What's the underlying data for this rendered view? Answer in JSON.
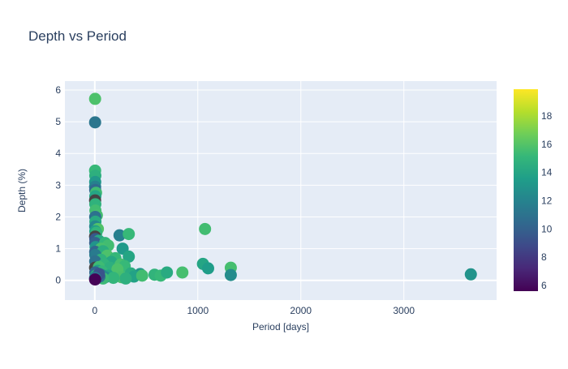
{
  "chart_data": {
    "type": "scatter",
    "title": "Depth vs Period",
    "xlabel": "Period [days]",
    "ylabel": "Depth (%)",
    "xlim": [
      -290,
      3900
    ],
    "ylim": [
      -0.62,
      6.28
    ],
    "xticks": [
      0,
      1000,
      2000,
      3000
    ],
    "yticks": [
      0,
      1,
      2,
      3,
      4,
      5,
      6
    ],
    "grid": true,
    "legend": "none",
    "colorbar": {
      "colorscale": "Viridis",
      "range": [
        5.6,
        19.9
      ],
      "ticks": [
        6,
        8,
        10,
        12,
        14,
        16,
        18
      ]
    },
    "null_color": "#444444",
    "points": [
      {
        "x": 3,
        "y": 5.72,
        "c": 15.8
      },
      {
        "x": 3,
        "y": 4.98,
        "c": 11.2
      },
      {
        "x": 3,
        "y": 3.46,
        "c": 15.2
      },
      {
        "x": 5,
        "y": 3.3,
        "c": 14.6
      },
      {
        "x": 4,
        "y": 3.1,
        "c": 13.2
      },
      {
        "x": 3,
        "y": 2.95,
        "c": 11.9
      },
      {
        "x": 4,
        "y": 2.85,
        "c": 10.5
      },
      {
        "x": 12,
        "y": 2.76,
        "c": 15.4
      },
      {
        "x": 5,
        "y": 2.65,
        "c": 14.0
      },
      {
        "x": 3,
        "y": 2.52,
        "c": null
      },
      {
        "x": 5,
        "y": 2.4,
        "c": 14.8
      },
      {
        "x": 6,
        "y": 2.2,
        "c": 15.5
      },
      {
        "x": 20,
        "y": 2.05,
        "c": 15.6
      },
      {
        "x": 4,
        "y": 2.0,
        "c": 11.0
      },
      {
        "x": 6,
        "y": 1.85,
        "c": 14.3
      },
      {
        "x": 4,
        "y": 1.7,
        "c": 12.3
      },
      {
        "x": 30,
        "y": 1.62,
        "c": 15.9
      },
      {
        "x": 5,
        "y": 1.55,
        "c": 13.6
      },
      {
        "x": 15,
        "y": 1.5,
        "c": 15.0
      },
      {
        "x": 3,
        "y": 1.38,
        "c": null
      },
      {
        "x": 5,
        "y": 1.3,
        "c": 9.6
      },
      {
        "x": 40,
        "y": 1.25,
        "c": 14.2
      },
      {
        "x": 4,
        "y": 1.18,
        "c": 10.0
      },
      {
        "x": 100,
        "y": 1.18,
        "c": 15.0
      },
      {
        "x": 130,
        "y": 1.1,
        "c": 15.5
      },
      {
        "x": 8,
        "y": 1.05,
        "c": 13.0
      },
      {
        "x": 60,
        "y": 1.0,
        "c": 15.7
      },
      {
        "x": 4,
        "y": 0.9,
        "c": 10.3
      },
      {
        "x": 270,
        "y": 1.0,
        "c": 13.3
      },
      {
        "x": 80,
        "y": 0.92,
        "c": 14.5
      },
      {
        "x": 5,
        "y": 0.8,
        "c": 11.5
      },
      {
        "x": 120,
        "y": 0.78,
        "c": 15.8
      },
      {
        "x": 330,
        "y": 0.75,
        "c": 14.0
      },
      {
        "x": 200,
        "y": 0.7,
        "c": 15.1
      },
      {
        "x": 60,
        "y": 0.65,
        "c": 14.8
      },
      {
        "x": 4,
        "y": 0.6,
        "c": 10.9
      },
      {
        "x": 160,
        "y": 0.58,
        "c": 14.1
      },
      {
        "x": 250,
        "y": 0.5,
        "c": 15.6
      },
      {
        "x": 90,
        "y": 0.5,
        "c": 14.9
      },
      {
        "x": 290,
        "y": 0.45,
        "c": 15.2
      },
      {
        "x": 3,
        "y": 0.4,
        "c": null
      },
      {
        "x": 40,
        "y": 0.42,
        "c": 15.4
      },
      {
        "x": 150,
        "y": 0.4,
        "c": 14.6
      },
      {
        "x": 220,
        "y": 0.35,
        "c": 15.8
      },
      {
        "x": 30,
        "y": 0.3,
        "c": 13.6
      },
      {
        "x": 70,
        "y": 0.28,
        "c": 15.1
      },
      {
        "x": 5,
        "y": 0.25,
        "c": 10.2
      },
      {
        "x": 350,
        "y": 0.22,
        "c": 14.4
      },
      {
        "x": 440,
        "y": 0.2,
        "c": 13.1
      },
      {
        "x": 580,
        "y": 0.18,
        "c": 14.9
      },
      {
        "x": 640,
        "y": 0.15,
        "c": 15.2
      },
      {
        "x": 700,
        "y": 0.25,
        "c": 14.3
      },
      {
        "x": 850,
        "y": 0.25,
        "c": 15.6
      },
      {
        "x": 380,
        "y": 0.12,
        "c": 13.8
      },
      {
        "x": 460,
        "y": 0.15,
        "c": 15.5
      },
      {
        "x": 260,
        "y": 0.1,
        "c": 15.7
      },
      {
        "x": 130,
        "y": 0.15,
        "c": 14.0
      },
      {
        "x": 60,
        "y": 0.18,
        "c": 11.7
      },
      {
        "x": 100,
        "y": 0.1,
        "c": 12.4
      },
      {
        "x": 180,
        "y": 0.08,
        "c": 15.0
      },
      {
        "x": 300,
        "y": 0.06,
        "c": 14.6
      },
      {
        "x": 80,
        "y": 0.06,
        "c": 15.3
      },
      {
        "x": 20,
        "y": 0.1,
        "c": 13.9
      },
      {
        "x": 45,
        "y": 0.12,
        "c": 10.6
      },
      {
        "x": 10,
        "y": 0.15,
        "c": 14.3
      },
      {
        "x": 40,
        "y": 0.2,
        "c": 9.3
      },
      {
        "x": 3,
        "y": 0.08,
        "c": 11.2
      },
      {
        "x": 3,
        "y": 0.03,
        "c": 5.7
      },
      {
        "x": 240,
        "y": 1.42,
        "c": 11.8
      },
      {
        "x": 330,
        "y": 1.46,
        "c": 15.2
      },
      {
        "x": 1070,
        "y": 1.62,
        "c": 15.5
      },
      {
        "x": 1050,
        "y": 0.52,
        "c": 14.0
      },
      {
        "x": 1100,
        "y": 0.38,
        "c": 13.5
      },
      {
        "x": 1320,
        "y": 0.4,
        "c": 15.6
      },
      {
        "x": 1320,
        "y": 0.17,
        "c": 12.5
      },
      {
        "x": 3650,
        "y": 0.19,
        "c": 12.9
      }
    ]
  }
}
